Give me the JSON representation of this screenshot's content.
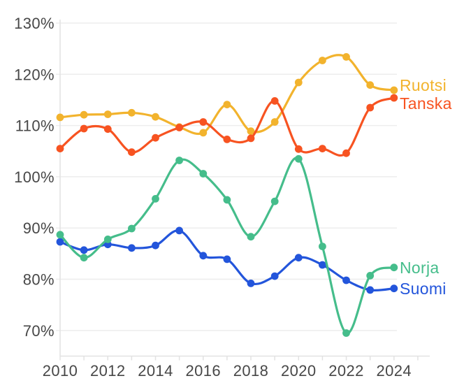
{
  "background": "#ffffff",
  "chart_data": {
    "type": "line",
    "title": "",
    "xlabel": "",
    "ylabel": "",
    "x": [
      2010,
      2011,
      2012,
      2013,
      2014,
      2015,
      2016,
      2017,
      2018,
      2019,
      2020,
      2021,
      2022,
      2023,
      2024
    ],
    "series": [
      {
        "name": "Ruotsi",
        "color": "#F2B32D",
        "values": [
          111.6,
          112.1,
          112.2,
          112.5,
          111.7,
          109.7,
          108.6,
          114.1,
          108.9,
          110.7,
          118.4,
          122.7,
          123.4,
          117.9,
          116.9
        ]
      },
      {
        "name": "Tanska",
        "color": "#F75321",
        "values": [
          105.5,
          109.4,
          109.3,
          104.8,
          107.6,
          109.6,
          110.7,
          107.3,
          107.5,
          114.8,
          105.4,
          105.5,
          104.6,
          113.5,
          115.4
        ]
      },
      {
        "name": "Norja",
        "color": "#45BD8B",
        "values": [
          88.7,
          84.2,
          87.8,
          89.9,
          95.7,
          103.2,
          100.6,
          95.5,
          88.3,
          95.2,
          103.5,
          86.4,
          69.5,
          80.7,
          82.3
        ]
      },
      {
        "name": "Suomi",
        "color": "#2355DB",
        "values": [
          87.3,
          85.7,
          86.8,
          86.1,
          86.6,
          89.5,
          84.6,
          83.9,
          79.2,
          80.6,
          84.2,
          82.8,
          79.8,
          77.9,
          78.2
        ]
      }
    ],
    "y_ticks": [
      {
        "value": 130,
        "label": "130%"
      },
      {
        "value": 120,
        "label": "120%"
      },
      {
        "value": 110,
        "label": "110%"
      },
      {
        "value": 100,
        "label": "100%"
      },
      {
        "value": 90,
        "label": "90%"
      },
      {
        "value": 80,
        "label": "80%"
      },
      {
        "value": 70,
        "label": "70%"
      }
    ],
    "x_ticks": [
      {
        "value": 2010,
        "label": "2010"
      },
      {
        "value": 2012,
        "label": "2012"
      },
      {
        "value": 2014,
        "label": "2014"
      },
      {
        "value": 2016,
        "label": "2016"
      },
      {
        "value": 2018,
        "label": "2018"
      },
      {
        "value": 2020,
        "label": "2020"
      },
      {
        "value": 2022,
        "label": "2022"
      },
      {
        "value": 2024,
        "label": "2024"
      }
    ],
    "x_minor_ticks": [
      2010,
      2011,
      2012,
      2013,
      2014,
      2015,
      2016,
      2017,
      2018,
      2019,
      2020,
      2021,
      2022,
      2023,
      2024,
      2025
    ],
    "xlim": [
      2010,
      2025.5
    ],
    "ylim": [
      65,
      130
    ],
    "grid": "horizontal",
    "legend_position": "end-of-line",
    "grid_color": "#EDEDED",
    "axis_color": "#E2E2E2",
    "tick_text_color": "#474747"
  }
}
